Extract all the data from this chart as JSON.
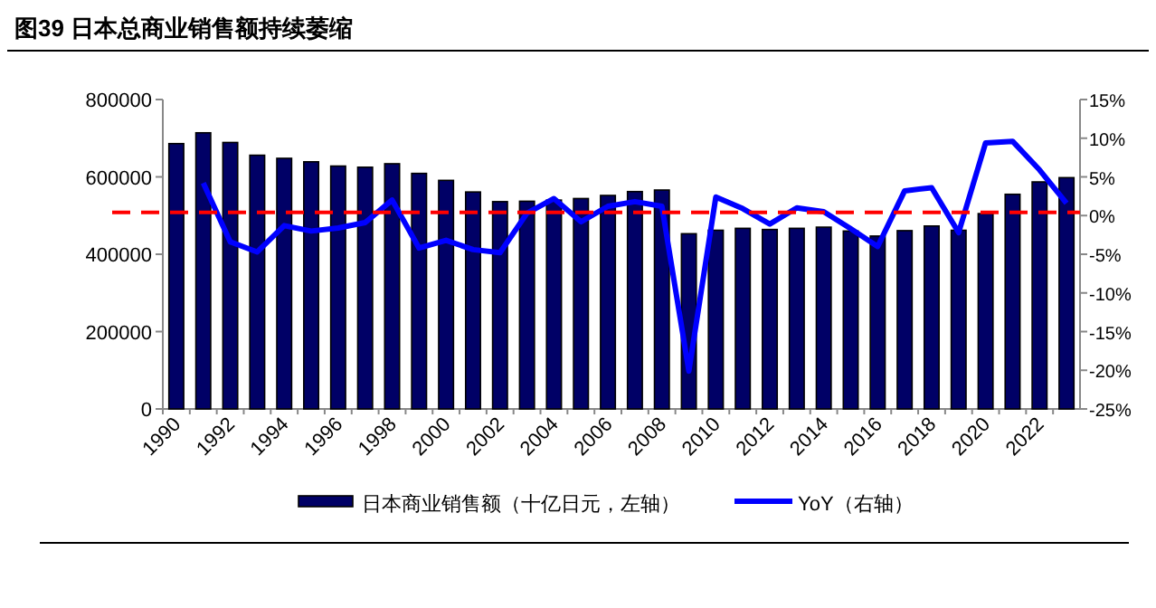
{
  "chart_data": {
    "type": "bar",
    "title": "图39 日本总商业销售额持续萎缩",
    "categories": [
      "1990",
      null,
      "1992",
      null,
      "1994",
      null,
      "1996",
      null,
      "1998",
      null,
      "2000",
      null,
      "2002",
      null,
      "2004",
      null,
      "2006",
      null,
      "2008",
      null,
      "2010",
      null,
      "2012",
      null,
      "2014",
      null,
      "2016",
      null,
      "2018",
      null,
      "2020",
      null,
      "2022",
      null
    ],
    "series": [
      {
        "name": "日本商业销售额（十亿日元，左轴）",
        "color": "#000066",
        "values": [
          686000,
          714000,
          689000,
          656000,
          648000,
          639000,
          628000,
          625000,
          634000,
          609000,
          591000,
          561000,
          536000,
          537000,
          540000,
          544000,
          552000,
          562000,
          566000,
          453000,
          462000,
          467000,
          464000,
          467000,
          470000,
          460000,
          447000,
          461000,
          473000,
          462000,
          505000,
          555000,
          587000,
          598000
        ]
      },
      {
        "name": "YoY（右轴）",
        "type": "line",
        "axis": "y2",
        "color": "#0000ff",
        "values": [
          null,
          4.2,
          -3.4,
          -4.7,
          -1.3,
          -2.0,
          -1.6,
          -0.9,
          2.0,
          -4.2,
          -3.2,
          -4.4,
          -4.8,
          0.3,
          2.2,
          -0.8,
          1.2,
          1.8,
          1.2,
          -20.1,
          2.4,
          0.9,
          -1.1,
          1.0,
          0.5,
          -1.7,
          -4.0,
          3.2,
          3.6,
          -2.2,
          9.4,
          9.6,
          5.9,
          1.6
        ]
      }
    ],
    "ylim": [
      0,
      800000
    ],
    "yticks": [
      0,
      200000,
      400000,
      600000,
      800000
    ],
    "y2lim": [
      -25,
      15
    ],
    "y2ticks": [
      {
        "value": -25,
        "label": "-25%"
      },
      {
        "value": -20,
        "label": "-20%"
      },
      {
        "value": -15,
        "label": "-15%"
      },
      {
        "value": -10,
        "label": "-10%"
      },
      {
        "value": -5,
        "label": "-5%"
      },
      {
        "value": 0,
        "label": "0%"
      },
      {
        "value": 5,
        "label": "5%"
      },
      {
        "value": 10,
        "label": "10%"
      },
      {
        "value": 15,
        "label": "15%"
      }
    ],
    "ref_lines": [
      {
        "axis": "y2",
        "value": 0.4,
        "color": "#ff0000",
        "line_style": "dashed"
      }
    ],
    "legend": "bottom",
    "grid": false
  }
}
